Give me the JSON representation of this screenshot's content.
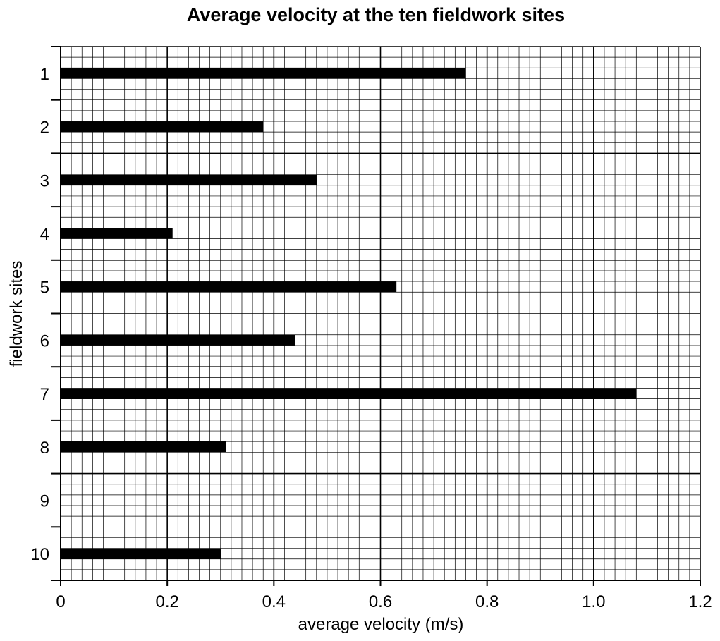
{
  "chart_data": {
    "type": "bar",
    "orientation": "horizontal",
    "title": "Average velocity at the ten fieldwork sites",
    "xlabel": "average velocity (m/s)",
    "ylabel": "fieldwork sites",
    "xlim": [
      0,
      1.2
    ],
    "x_ticks": [
      "0",
      "0.2",
      "0.4",
      "0.6",
      "0.8",
      "1.0",
      "1.2"
    ],
    "x_tick_values": [
      0,
      0.2,
      0.4,
      0.6,
      0.8,
      1.0,
      1.2
    ],
    "categories": [
      "1",
      "2",
      "3",
      "4",
      "5",
      "6",
      "7",
      "8",
      "9",
      "10"
    ],
    "values": [
      0.76,
      0.38,
      0.48,
      0.21,
      0.63,
      0.44,
      1.08,
      0.31,
      0,
      0.3
    ],
    "grid": true,
    "bar_color": "#000000"
  }
}
